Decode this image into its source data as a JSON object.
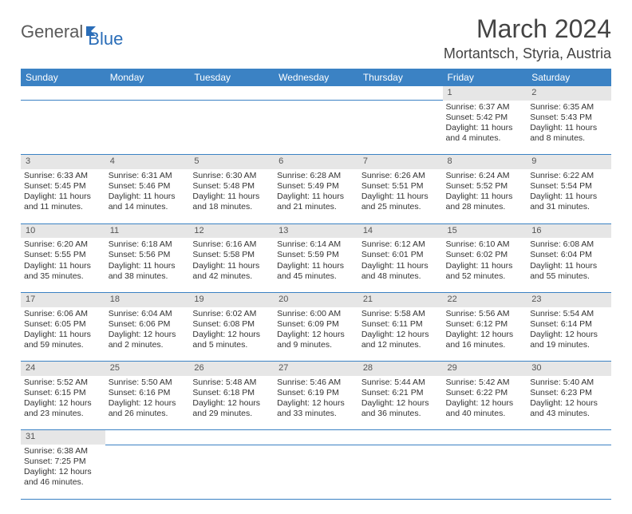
{
  "logo": {
    "word1": "General",
    "word2": "Blue"
  },
  "title": "March 2024",
  "location": "Mortantsch, Styria, Austria",
  "colors": {
    "header_bg": "#3b82c4",
    "header_fg": "#ffffff",
    "daynum_bg": "#e6e6e6",
    "cell_border": "#3b82c4",
    "text": "#333333",
    "logo_blue": "#2a6db8"
  },
  "weekdays": [
    "Sunday",
    "Monday",
    "Tuesday",
    "Wednesday",
    "Thursday",
    "Friday",
    "Saturday"
  ],
  "grid": [
    [
      null,
      null,
      null,
      null,
      null,
      {
        "n": "1",
        "sr": "Sunrise: 6:37 AM",
        "ss": "Sunset: 5:42 PM",
        "dl": "Daylight: 11 hours and 4 minutes."
      },
      {
        "n": "2",
        "sr": "Sunrise: 6:35 AM",
        "ss": "Sunset: 5:43 PM",
        "dl": "Daylight: 11 hours and 8 minutes."
      }
    ],
    [
      {
        "n": "3",
        "sr": "Sunrise: 6:33 AM",
        "ss": "Sunset: 5:45 PM",
        "dl": "Daylight: 11 hours and 11 minutes."
      },
      {
        "n": "4",
        "sr": "Sunrise: 6:31 AM",
        "ss": "Sunset: 5:46 PM",
        "dl": "Daylight: 11 hours and 14 minutes."
      },
      {
        "n": "5",
        "sr": "Sunrise: 6:30 AM",
        "ss": "Sunset: 5:48 PM",
        "dl": "Daylight: 11 hours and 18 minutes."
      },
      {
        "n": "6",
        "sr": "Sunrise: 6:28 AM",
        "ss": "Sunset: 5:49 PM",
        "dl": "Daylight: 11 hours and 21 minutes."
      },
      {
        "n": "7",
        "sr": "Sunrise: 6:26 AM",
        "ss": "Sunset: 5:51 PM",
        "dl": "Daylight: 11 hours and 25 minutes."
      },
      {
        "n": "8",
        "sr": "Sunrise: 6:24 AM",
        "ss": "Sunset: 5:52 PM",
        "dl": "Daylight: 11 hours and 28 minutes."
      },
      {
        "n": "9",
        "sr": "Sunrise: 6:22 AM",
        "ss": "Sunset: 5:54 PM",
        "dl": "Daylight: 11 hours and 31 minutes."
      }
    ],
    [
      {
        "n": "10",
        "sr": "Sunrise: 6:20 AM",
        "ss": "Sunset: 5:55 PM",
        "dl": "Daylight: 11 hours and 35 minutes."
      },
      {
        "n": "11",
        "sr": "Sunrise: 6:18 AM",
        "ss": "Sunset: 5:56 PM",
        "dl": "Daylight: 11 hours and 38 minutes."
      },
      {
        "n": "12",
        "sr": "Sunrise: 6:16 AM",
        "ss": "Sunset: 5:58 PM",
        "dl": "Daylight: 11 hours and 42 minutes."
      },
      {
        "n": "13",
        "sr": "Sunrise: 6:14 AM",
        "ss": "Sunset: 5:59 PM",
        "dl": "Daylight: 11 hours and 45 minutes."
      },
      {
        "n": "14",
        "sr": "Sunrise: 6:12 AM",
        "ss": "Sunset: 6:01 PM",
        "dl": "Daylight: 11 hours and 48 minutes."
      },
      {
        "n": "15",
        "sr": "Sunrise: 6:10 AM",
        "ss": "Sunset: 6:02 PM",
        "dl": "Daylight: 11 hours and 52 minutes."
      },
      {
        "n": "16",
        "sr": "Sunrise: 6:08 AM",
        "ss": "Sunset: 6:04 PM",
        "dl": "Daylight: 11 hours and 55 minutes."
      }
    ],
    [
      {
        "n": "17",
        "sr": "Sunrise: 6:06 AM",
        "ss": "Sunset: 6:05 PM",
        "dl": "Daylight: 11 hours and 59 minutes."
      },
      {
        "n": "18",
        "sr": "Sunrise: 6:04 AM",
        "ss": "Sunset: 6:06 PM",
        "dl": "Daylight: 12 hours and 2 minutes."
      },
      {
        "n": "19",
        "sr": "Sunrise: 6:02 AM",
        "ss": "Sunset: 6:08 PM",
        "dl": "Daylight: 12 hours and 5 minutes."
      },
      {
        "n": "20",
        "sr": "Sunrise: 6:00 AM",
        "ss": "Sunset: 6:09 PM",
        "dl": "Daylight: 12 hours and 9 minutes."
      },
      {
        "n": "21",
        "sr": "Sunrise: 5:58 AM",
        "ss": "Sunset: 6:11 PM",
        "dl": "Daylight: 12 hours and 12 minutes."
      },
      {
        "n": "22",
        "sr": "Sunrise: 5:56 AM",
        "ss": "Sunset: 6:12 PM",
        "dl": "Daylight: 12 hours and 16 minutes."
      },
      {
        "n": "23",
        "sr": "Sunrise: 5:54 AM",
        "ss": "Sunset: 6:14 PM",
        "dl": "Daylight: 12 hours and 19 minutes."
      }
    ],
    [
      {
        "n": "24",
        "sr": "Sunrise: 5:52 AM",
        "ss": "Sunset: 6:15 PM",
        "dl": "Daylight: 12 hours and 23 minutes."
      },
      {
        "n": "25",
        "sr": "Sunrise: 5:50 AM",
        "ss": "Sunset: 6:16 PM",
        "dl": "Daylight: 12 hours and 26 minutes."
      },
      {
        "n": "26",
        "sr": "Sunrise: 5:48 AM",
        "ss": "Sunset: 6:18 PM",
        "dl": "Daylight: 12 hours and 29 minutes."
      },
      {
        "n": "27",
        "sr": "Sunrise: 5:46 AM",
        "ss": "Sunset: 6:19 PM",
        "dl": "Daylight: 12 hours and 33 minutes."
      },
      {
        "n": "28",
        "sr": "Sunrise: 5:44 AM",
        "ss": "Sunset: 6:21 PM",
        "dl": "Daylight: 12 hours and 36 minutes."
      },
      {
        "n": "29",
        "sr": "Sunrise: 5:42 AM",
        "ss": "Sunset: 6:22 PM",
        "dl": "Daylight: 12 hours and 40 minutes."
      },
      {
        "n": "30",
        "sr": "Sunrise: 5:40 AM",
        "ss": "Sunset: 6:23 PM",
        "dl": "Daylight: 12 hours and 43 minutes."
      }
    ],
    [
      {
        "n": "31",
        "sr": "Sunrise: 6:38 AM",
        "ss": "Sunset: 7:25 PM",
        "dl": "Daylight: 12 hours and 46 minutes."
      },
      null,
      null,
      null,
      null,
      null,
      null
    ]
  ]
}
